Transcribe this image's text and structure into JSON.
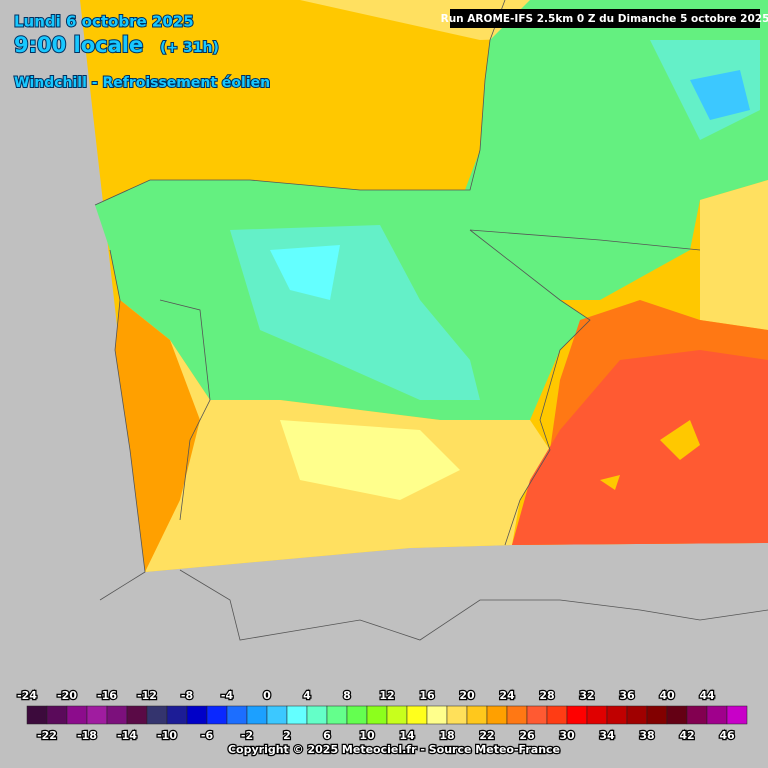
{
  "header": {
    "date": "Lundi 6 octobre 2025",
    "time": "9:00 locale",
    "lead": "(+ 31h)",
    "product": "Windchill - Refroissement éolien"
  },
  "run": "Run AROME-IFS 2.5km 0 Z du Dimanche 5 octobre 2025",
  "legend": {
    "values": [
      -24,
      -22,
      -20,
      -18,
      -16,
      -14,
      -12,
      -10,
      -8,
      -6,
      -4,
      -2,
      0,
      2,
      4,
      6,
      8,
      10,
      12,
      14,
      16,
      18,
      20,
      22,
      24,
      26,
      28,
      30,
      32,
      34,
      36,
      38,
      40,
      42,
      44,
      46
    ],
    "colors": [
      "#3c0a3c",
      "#5a0a5a",
      "#8c0c8c",
      "#a01ca0",
      "#7c107c",
      "#5a0a46",
      "#34346e",
      "#1c1c96",
      "#0000c8",
      "#0a28ff",
      "#1c6eff",
      "#1ca0ff",
      "#3cc8ff",
      "#64ffff",
      "#64ffc8",
      "#64ff8c",
      "#64ff50",
      "#8cff1c",
      "#c8ff1c",
      "#ffff1c",
      "#ffff8c",
      "#ffe05a",
      "#ffc81c",
      "#ffa000",
      "#ff7814",
      "#ff5a32",
      "#ff3c14",
      "#ff0000",
      "#e00000",
      "#c00000",
      "#a00000",
      "#820000",
      "#640014",
      "#820050",
      "#a0008c",
      "#c800c8",
      "#ff00ff",
      "#ff8cff"
    ]
  },
  "copyright": "Copyright © 2025 Meteociel.fr - Source Meteo-France"
}
